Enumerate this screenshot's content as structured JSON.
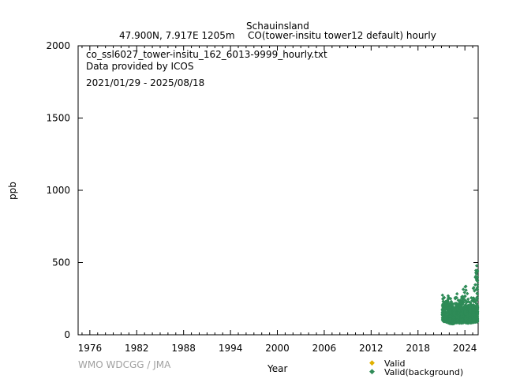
{
  "header": {
    "station": "Schauinsland",
    "location": "47.900N, 7.917E 1205m",
    "series_desc": "CO(tower-insitu tower12 default) hourly"
  },
  "info": {
    "filename": "co_ssl6027_tower-insitu_162_6013-9999_hourly.txt",
    "provider": "Data provided by ICOS",
    "period": "2021/01/29 - 2025/08/18"
  },
  "footer": {
    "credit": "WMO WDCGG / JMA"
  },
  "colors": {
    "valid": "#e0b000",
    "valid_background": "#2e8b57"
  },
  "chart_data": {
    "type": "scatter",
    "xlabel": "Year",
    "ylabel": "ppb",
    "xlim": [
      1974.5,
      2025.7
    ],
    "ylim": [
      0,
      2000
    ],
    "x_ticks": [
      1976,
      1982,
      1988,
      1994,
      2000,
      2006,
      2012,
      2018,
      2024
    ],
    "y_ticks": [
      0,
      500,
      1000,
      1500,
      2000
    ],
    "legend_position": "bottom-right",
    "series": [
      {
        "name": "Valid",
        "color": "#e0b000",
        "points": []
      },
      {
        "name": "Valid(background)",
        "color": "#2e8b57",
        "points_envelope": [
          {
            "x": 2021.1,
            "low": 95,
            "high": 310
          },
          {
            "x": 2021.5,
            "low": 90,
            "high": 230
          },
          {
            "x": 2022.0,
            "low": 80,
            "high": 290
          },
          {
            "x": 2022.5,
            "low": 75,
            "high": 220
          },
          {
            "x": 2023.0,
            "low": 85,
            "high": 300
          },
          {
            "x": 2023.5,
            "low": 80,
            "high": 240
          },
          {
            "x": 2024.0,
            "low": 85,
            "high": 400
          },
          {
            "x": 2024.5,
            "low": 80,
            "high": 240
          },
          {
            "x": 2025.0,
            "low": 85,
            "high": 290
          },
          {
            "x": 2025.5,
            "low": 90,
            "high": 490
          }
        ]
      }
    ]
  }
}
